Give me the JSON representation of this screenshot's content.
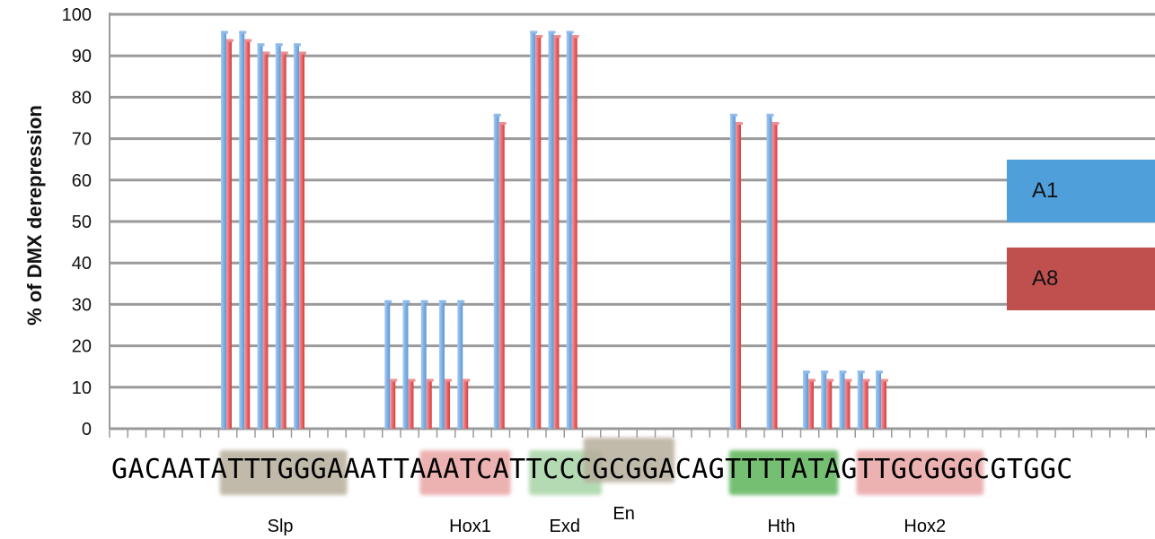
{
  "chart_data": {
    "type": "bar",
    "ylabel": "% of DMX derepression",
    "ylim": [
      0,
      100
    ],
    "yticks": [
      0,
      10,
      20,
      30,
      40,
      50,
      60,
      70,
      80,
      90,
      100
    ],
    "grid": true,
    "legend_placement": "right",
    "sequence": "GACAATATTTGGGAAATTAAATCATTCCCGCGGACAGTTTTATAGTTGCGGGCGTGGC",
    "motifs": [
      {
        "label": "Slp",
        "color": "#b7ae9c"
      },
      {
        "label": "Hox1",
        "color": "#e9a4a4"
      },
      {
        "label": "Exd",
        "color": "#a8d4a6"
      },
      {
        "label": "En",
        "color": "#b7ae9c"
      },
      {
        "label": "Hth",
        "color": "#5db45a"
      },
      {
        "label": "Hox2",
        "color": "#e9a4a4"
      }
    ],
    "series": [
      {
        "name": "A1",
        "color": "#7fb1e6",
        "values": [
          null,
          null,
          null,
          null,
          null,
          null,
          96,
          96,
          93,
          93,
          93,
          null,
          null,
          null,
          null,
          31,
          31,
          31,
          31,
          31,
          null,
          76,
          null,
          96,
          96,
          96,
          null,
          null,
          null,
          null,
          null,
          null,
          null,
          null,
          76,
          null,
          76,
          null,
          14,
          14,
          14,
          14,
          14,
          null,
          null,
          null,
          null,
          null,
          null,
          null,
          null,
          null,
          null,
          null,
          null,
          null,
          null,
          null
        ]
      },
      {
        "name": "A8",
        "color": "#e8686b",
        "values": [
          null,
          null,
          null,
          null,
          null,
          null,
          94,
          94,
          91,
          91,
          91,
          null,
          null,
          null,
          null,
          12,
          12,
          12,
          12,
          12,
          null,
          74,
          null,
          95,
          95,
          95,
          null,
          null,
          null,
          null,
          null,
          null,
          null,
          null,
          74,
          null,
          74,
          null,
          12,
          12,
          12,
          12,
          12,
          null,
          null,
          null,
          null,
          null,
          null,
          null,
          null,
          null,
          null,
          null,
          null,
          null,
          null,
          null
        ]
      }
    ]
  },
  "legend": {
    "a1": "A1",
    "a8": "A8"
  }
}
